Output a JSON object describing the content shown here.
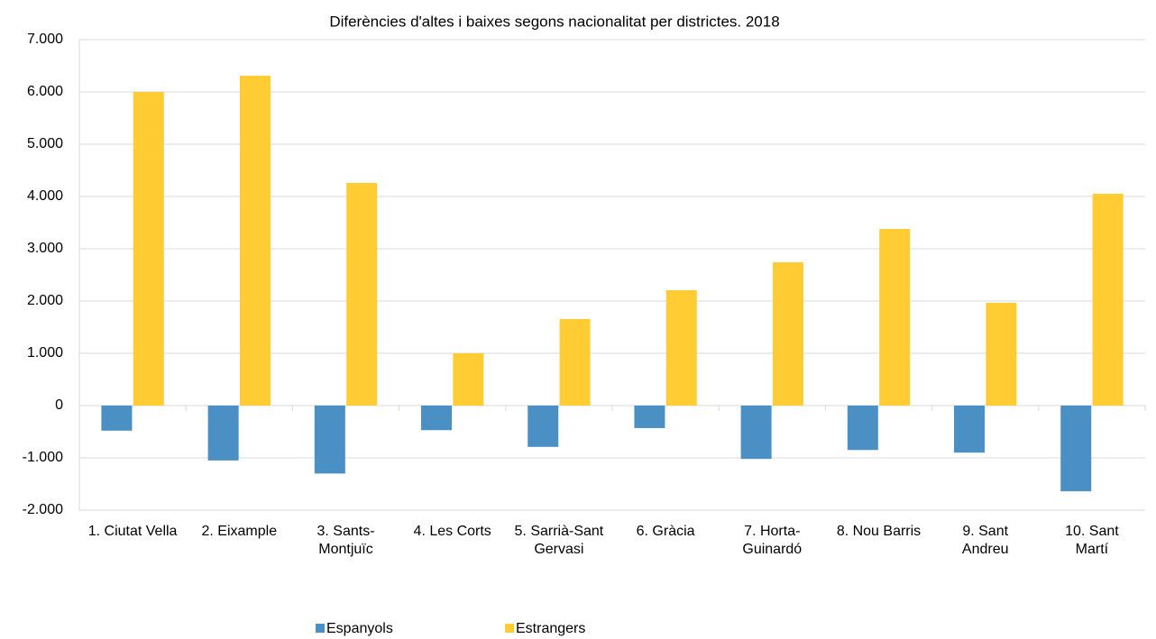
{
  "chart_data": {
    "type": "bar",
    "title": "Diferències d'altes i baixes segons nacionalitat per districtes. 2018",
    "categories": [
      "1. Ciutat Vella",
      "2. Eixample",
      "3. Sants-Montjuïc",
      "4. Les Corts",
      "5. Sarrià-Sant Gervasi",
      "6. Gràcia",
      "7. Horta-Guinardó",
      "8. Nou Barris",
      "9. Sant Andreu",
      "10. Sant Martí"
    ],
    "series": [
      {
        "name": "Espanyols",
        "color": "#4a90c4",
        "values": [
          -480,
          -1050,
          -1300,
          -470,
          -790,
          -430,
          -1020,
          -850,
          -900,
          -1640
        ]
      },
      {
        "name": "Estrangers",
        "color": "#ffcc33",
        "values": [
          6000,
          6310,
          4260,
          1000,
          1655,
          2207,
          2741,
          3379,
          1966,
          4052
        ]
      }
    ],
    "ylim": [
      -2000,
      7000
    ],
    "yticks": [
      {
        "value": -2000,
        "label": "-2.000"
      },
      {
        "value": -1000,
        "label": "-1.000"
      },
      0,
      {
        "value": 1000,
        "label": "1.000"
      },
      {
        "value": 2000,
        "label": "2.000"
      },
      {
        "value": 3000,
        "label": "3.000"
      },
      {
        "value": 4000,
        "label": "4.000"
      },
      {
        "value": 5000,
        "label": "5.000"
      },
      {
        "value": 6000,
        "label": "6.000"
      },
      {
        "value": 7000,
        "label": "7.000"
      }
    ],
    "grid": true
  }
}
